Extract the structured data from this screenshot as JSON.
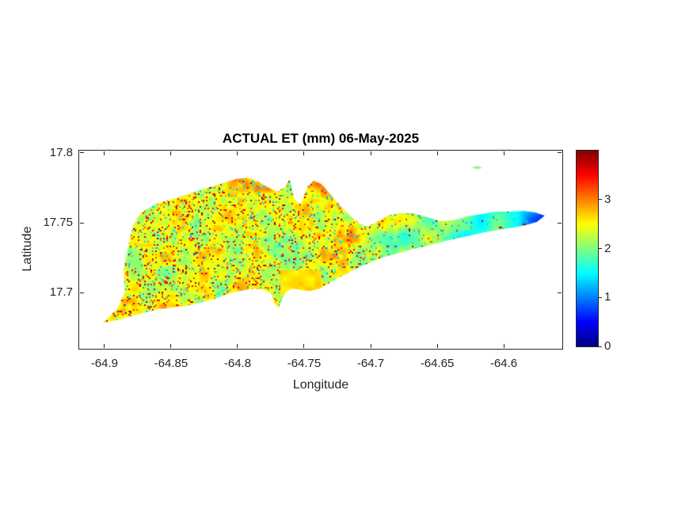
{
  "chart_data": {
    "type": "heatmap",
    "title": "ACTUAL ET (mm) 06-May-2025",
    "xlabel": "Longitude",
    "ylabel": "Latitude",
    "x_range": [
      -64.919,
      -64.556
    ],
    "y_range": [
      17.6597,
      17.8017
    ],
    "x_ticks": [
      -64.9,
      -64.85,
      -64.8,
      -64.75,
      -64.7,
      -64.65,
      -64.6
    ],
    "x_tick_labels": [
      "-64.9",
      "-64.85",
      "-64.8",
      "-64.75",
      "-64.7",
      "-64.65",
      "-64.6"
    ],
    "y_ticks": [
      17.7,
      17.75,
      17.8
    ],
    "y_tick_labels": [
      "17.7",
      "17.75",
      "17.8"
    ],
    "grid": false,
    "colorbar": {
      "min": 0,
      "max": 4.0,
      "ticks": [
        0,
        1,
        2,
        3
      ],
      "tick_labels": [
        "0",
        "1",
        "2",
        "3"
      ],
      "colormap": "jet",
      "stops_bottom_to_top": [
        "#00007F",
        "#0000FF",
        "#00FFFF",
        "#FFFF00",
        "#FF0000",
        "#7F0000"
      ],
      "stop_fractions": [
        0,
        12.5,
        37.5,
        62.5,
        87.5,
        100
      ]
    },
    "colors": {
      "background": "#FFFFFF",
      "axis": "#262626",
      "title": "#000000"
    },
    "field": {
      "base_value": 1.65,
      "broad_noise_amp": 0.85,
      "fine_noise_amp": 0.55,
      "north_central_boost": 0.18,
      "east_decline_start_lon": -64.71,
      "east_decline_span": 0.1,
      "east_decline_amp": 0.45,
      "blue_tip_start_lon": -64.605,
      "blue_tip_span": 0.04,
      "blue_tip_drop": 0.85,
      "red_speckle_value": 2.9,
      "cyan_speckle_value": 1.1,
      "value_clip": [
        0.35,
        3.9
      ]
    },
    "features": {
      "orange_patch": {
        "lon": [
          -64.768,
          -64.737
        ],
        "lat": [
          17.698,
          17.716
        ],
        "value": 2.5
      }
    },
    "island_outline": [
      [
        -64.9012,
        17.6784
      ],
      [
        -64.8905,
        17.6881
      ],
      [
        -64.8845,
        17.7006
      ],
      [
        -64.8857,
        17.7165
      ],
      [
        -64.8821,
        17.7335
      ],
      [
        -64.8786,
        17.7477
      ],
      [
        -64.8726,
        17.7574
      ],
      [
        -64.8619,
        17.7631
      ],
      [
        -64.8506,
        17.7665
      ],
      [
        -64.8387,
        17.7699
      ],
      [
        -64.825,
        17.7744
      ],
      [
        -64.8131,
        17.7778
      ],
      [
        -64.8012,
        17.7812
      ],
      [
        -64.7929,
        17.7824
      ],
      [
        -64.7857,
        17.7801
      ],
      [
        -64.7774,
        17.7756
      ],
      [
        -64.7703,
        17.7722
      ],
      [
        -64.7643,
        17.7756
      ],
      [
        -64.7608,
        17.7812
      ],
      [
        -64.7572,
        17.7665
      ],
      [
        -64.7524,
        17.7631
      ],
      [
        -64.7477,
        17.7756
      ],
      [
        -64.7429,
        17.7801
      ],
      [
        -64.737,
        17.7778
      ],
      [
        -64.7298,
        17.7699
      ],
      [
        -64.7227,
        17.7619
      ],
      [
        -64.7155,
        17.7551
      ],
      [
        -64.7084,
        17.7494
      ],
      [
        -64.7024,
        17.7472
      ],
      [
        -64.6953,
        17.7506
      ],
      [
        -64.687,
        17.7551
      ],
      [
        -64.678,
        17.7568
      ],
      [
        -64.6679,
        17.7568
      ],
      [
        -64.6572,
        17.754
      ],
      [
        -64.6477,
        17.7511
      ],
      [
        -64.6382,
        17.7517
      ],
      [
        -64.6275,
        17.7545
      ],
      [
        -64.6168,
        17.7562
      ],
      [
        -64.6061,
        17.7579
      ],
      [
        -64.5954,
        17.7579
      ],
      [
        -64.5846,
        17.7585
      ],
      [
        -64.5763,
        17.7574
      ],
      [
        -64.5692,
        17.7551
      ],
      [
        -64.5751,
        17.7506
      ],
      [
        -64.5834,
        17.7483
      ],
      [
        -64.5929,
        17.7466
      ],
      [
        -64.6036,
        17.7449
      ],
      [
        -64.6143,
        17.7432
      ],
      [
        -64.625,
        17.7409
      ],
      [
        -64.6357,
        17.7386
      ],
      [
        -64.6464,
        17.7364
      ],
      [
        -64.6572,
        17.7335
      ],
      [
        -64.6679,
        17.7312
      ],
      [
        -64.6786,
        17.7284
      ],
      [
        -64.6893,
        17.7256
      ],
      [
        -64.6988,
        17.7222
      ],
      [
        -64.7072,
        17.7187
      ],
      [
        -64.7155,
        17.7148
      ],
      [
        -64.7238,
        17.7108
      ],
      [
        -64.7322,
        17.7062
      ],
      [
        -64.7381,
        17.7028
      ],
      [
        -64.7453,
        17.7011
      ],
      [
        -64.7524,
        17.7017
      ],
      [
        -64.7584,
        17.7028
      ],
      [
        -64.7637,
        17.7006
      ],
      [
        -64.7667,
        17.6949
      ],
      [
        -64.7691,
        17.6892
      ],
      [
        -64.7721,
        17.692
      ],
      [
        -64.7745,
        17.6989
      ],
      [
        -64.7798,
        17.7017
      ],
      [
        -64.7869,
        17.7028
      ],
      [
        -64.7953,
        17.7017
      ],
      [
        -64.8036,
        17.7
      ],
      [
        -64.8119,
        17.6972
      ],
      [
        -64.8214,
        17.6943
      ],
      [
        -64.831,
        17.692
      ],
      [
        -64.8405,
        17.6903
      ],
      [
        -64.85,
        17.6892
      ],
      [
        -64.8595,
        17.6881
      ],
      [
        -64.869,
        17.6858
      ],
      [
        -64.8786,
        17.6835
      ],
      [
        -64.8881,
        17.6807
      ]
    ],
    "islet_outline": [
      [
        -64.624,
        17.7896
      ],
      [
        -64.6195,
        17.7907
      ],
      [
        -64.616,
        17.7893
      ],
      [
        -64.62,
        17.7883
      ]
    ]
  }
}
